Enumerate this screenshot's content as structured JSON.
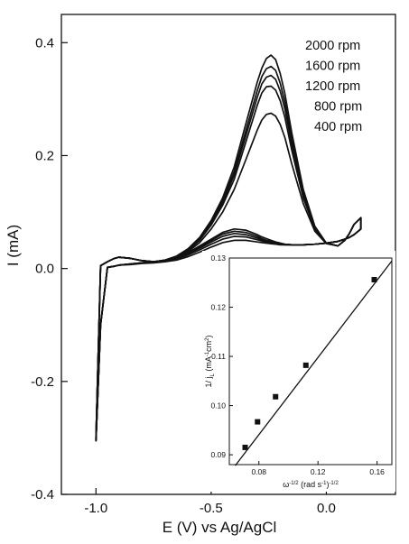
{
  "chart_data": [
    {
      "type": "line",
      "title": "",
      "xlabel": "E (V) vs Ag/AgCl",
      "ylabel": "I (mA)",
      "xlim": [
        -1.15,
        0.3
      ],
      "ylim": [
        -0.4,
        0.45
      ],
      "x_ticks": [
        -1.0,
        -0.5,
        0.0
      ],
      "x_tick_labels": [
        "-1.0",
        "-0.5",
        "0.0"
      ],
      "y_ticks": [
        -0.4,
        -0.2,
        0.0,
        0.2,
        0.4
      ],
      "y_tick_labels": [
        "-0.4",
        "-0.2",
        "0.0",
        "0.2",
        "0.4"
      ],
      "grid": false,
      "line_color": "#111111",
      "legend_position": "top-right",
      "legend_labels": [
        "2000 rpm",
        "1600 rpm",
        "1200 rpm",
        "800 rpm",
        "400 rpm"
      ],
      "common_x": [
        -1.0,
        -0.98,
        -0.95,
        -0.92,
        -0.9,
        -0.85,
        -0.8,
        -0.75,
        -0.7,
        -0.65,
        -0.6,
        -0.55,
        -0.5,
        -0.45,
        -0.4,
        -0.35,
        -0.3,
        -0.28,
        -0.26,
        -0.24,
        -0.22,
        -0.2,
        -0.18,
        -0.15,
        -0.1,
        -0.05,
        0.0,
        0.05,
        0.08,
        0.1,
        0.12,
        0.15
      ],
      "common_baseline": [
        -0.3,
        0.005,
        0.012,
        0.018,
        0.02,
        0.018,
        0.012,
        0.008,
        0.006,
        0.005,
        0.006,
        0.009,
        0.014,
        0.02,
        0.025,
        0.03,
        0.035,
        0.037,
        0.038,
        0.039,
        0.04,
        0.041,
        0.042,
        0.043,
        0.045,
        0.047,
        0.05,
        0.055,
        0.06,
        0.063,
        0.066,
        0.07
      ],
      "series": [
        {
          "name": "2000 rpm",
          "anodic_y": [
            -0.3,
            0.005,
            0.012,
            0.018,
            0.02,
            0.018,
            0.014,
            0.012,
            0.015,
            0.022,
            0.035,
            0.055,
            0.085,
            0.125,
            0.18,
            0.255,
            0.33,
            0.355,
            0.372,
            0.378,
            0.37,
            0.345,
            0.31,
            0.24,
            0.14,
            0.075,
            0.045,
            0.04,
            0.05,
            0.062,
            0.078,
            0.09
          ],
          "cathodic_y": [
            -0.305,
            -0.1,
            0.002,
            0.004,
            0.006,
            0.008,
            0.01,
            0.012,
            0.015,
            0.02,
            0.028,
            0.04,
            0.052,
            0.064,
            0.07,
            0.068,
            0.06,
            0.056,
            0.053,
            0.05,
            0.047,
            0.045,
            0.043,
            0.042,
            0.042,
            0.043,
            0.045,
            0.048,
            0.052,
            0.055,
            0.06,
            0.07
          ]
        },
        {
          "name": "1600 rpm",
          "anodic_y": [
            -0.3,
            0.005,
            0.012,
            0.018,
            0.02,
            0.018,
            0.014,
            0.012,
            0.015,
            0.022,
            0.034,
            0.053,
            0.082,
            0.12,
            0.172,
            0.243,
            0.315,
            0.34,
            0.354,
            0.358,
            0.351,
            0.328,
            0.295,
            0.228,
            0.135,
            0.073,
            0.045,
            0.04,
            0.05,
            0.062,
            0.078,
            0.09
          ],
          "cathodic_y": [
            -0.305,
            -0.1,
            0.002,
            0.004,
            0.006,
            0.008,
            0.01,
            0.012,
            0.015,
            0.019,
            0.027,
            0.038,
            0.05,
            0.061,
            0.066,
            0.064,
            0.057,
            0.053,
            0.05,
            0.048,
            0.046,
            0.044,
            0.043,
            0.042,
            0.042,
            0.043,
            0.045,
            0.048,
            0.052,
            0.055,
            0.06,
            0.07
          ]
        },
        {
          "name": "1200 rpm",
          "anodic_y": [
            -0.3,
            0.005,
            0.012,
            0.018,
            0.02,
            0.018,
            0.014,
            0.012,
            0.015,
            0.021,
            0.033,
            0.052,
            0.08,
            0.116,
            0.166,
            0.234,
            0.303,
            0.327,
            0.339,
            0.342,
            0.335,
            0.314,
            0.283,
            0.22,
            0.13,
            0.072,
            0.045,
            0.04,
            0.05,
            0.062,
            0.078,
            0.09
          ],
          "cathodic_y": [
            -0.305,
            -0.1,
            0.002,
            0.004,
            0.006,
            0.008,
            0.01,
            0.012,
            0.014,
            0.018,
            0.026,
            0.036,
            0.047,
            0.057,
            0.062,
            0.06,
            0.054,
            0.051,
            0.048,
            0.046,
            0.045,
            0.044,
            0.043,
            0.042,
            0.042,
            0.043,
            0.045,
            0.048,
            0.052,
            0.055,
            0.06,
            0.07
          ]
        },
        {
          "name": "800 rpm",
          "anodic_y": [
            -0.3,
            0.005,
            0.012,
            0.018,
            0.02,
            0.018,
            0.014,
            0.012,
            0.014,
            0.02,
            0.032,
            0.05,
            0.077,
            0.112,
            0.158,
            0.223,
            0.289,
            0.311,
            0.322,
            0.323,
            0.316,
            0.297,
            0.268,
            0.209,
            0.125,
            0.07,
            0.045,
            0.04,
            0.05,
            0.062,
            0.078,
            0.09
          ],
          "cathodic_y": [
            -0.305,
            -0.1,
            0.002,
            0.004,
            0.006,
            0.008,
            0.01,
            0.011,
            0.013,
            0.017,
            0.024,
            0.033,
            0.043,
            0.052,
            0.057,
            0.056,
            0.051,
            0.049,
            0.047,
            0.045,
            0.044,
            0.043,
            0.042,
            0.042,
            0.042,
            0.043,
            0.045,
            0.048,
            0.052,
            0.055,
            0.06,
            0.07
          ]
        },
        {
          "name": "400 rpm",
          "anodic_y": [
            -0.3,
            0.005,
            0.012,
            0.018,
            0.02,
            0.018,
            0.014,
            0.012,
            0.014,
            0.019,
            0.03,
            0.046,
            0.07,
            0.1,
            0.14,
            0.192,
            0.245,
            0.263,
            0.273,
            0.275,
            0.27,
            0.255,
            0.232,
            0.185,
            0.115,
            0.066,
            0.044,
            0.04,
            0.05,
            0.062,
            0.078,
            0.09
          ],
          "cathodic_y": [
            -0.305,
            -0.1,
            0.002,
            0.004,
            0.006,
            0.007,
            0.009,
            0.01,
            0.012,
            0.015,
            0.021,
            0.029,
            0.038,
            0.046,
            0.05,
            0.05,
            0.047,
            0.046,
            0.045,
            0.044,
            0.043,
            0.042,
            0.042,
            0.042,
            0.042,
            0.043,
            0.045,
            0.048,
            0.052,
            0.055,
            0.06,
            0.07
          ]
        }
      ]
    },
    {
      "type": "scatter",
      "title": "",
      "xlabel": "ω",
      "xlabel_exp": "-1/2",
      "xlabel_units": " (rad s",
      "xlabel_units_exp": "-1",
      "xlabel_units_close": ")",
      "xlabel_units_close_exp": "-1/2",
      "ylabel": "1/ j",
      "ylabel_sub": "L",
      "ylabel_units": " (mA",
      "ylabel_units_exp1": "-1",
      "ylabel_units_mid": "cm",
      "ylabel_units_exp2": "2",
      "ylabel_units_close": ")",
      "xlim": [
        0.06,
        0.17
      ],
      "ylim": [
        0.088,
        0.13
      ],
      "x_ticks": [
        0.08,
        0.12,
        0.16
      ],
      "x_tick_labels": [
        "0.08",
        "0.12",
        "0.16"
      ],
      "y_ticks": [
        0.09,
        0.1,
        0.11,
        0.12,
        0.13
      ],
      "y_tick_labels": [
        "0.09",
        "0.10",
        "0.11",
        "0.12",
        "0.13"
      ],
      "grid": false,
      "x": [
        0.0707,
        0.0791,
        0.0913,
        0.1118,
        0.1581
      ],
      "y": [
        0.0915,
        0.0967,
        0.1018,
        0.1082,
        0.1256
      ],
      "fit_line": {
        "x": [
          0.064,
          0.17
        ],
        "y": [
          0.0878,
          0.1294
        ]
      },
      "marker": "square",
      "marker_color": "#111111"
    }
  ]
}
